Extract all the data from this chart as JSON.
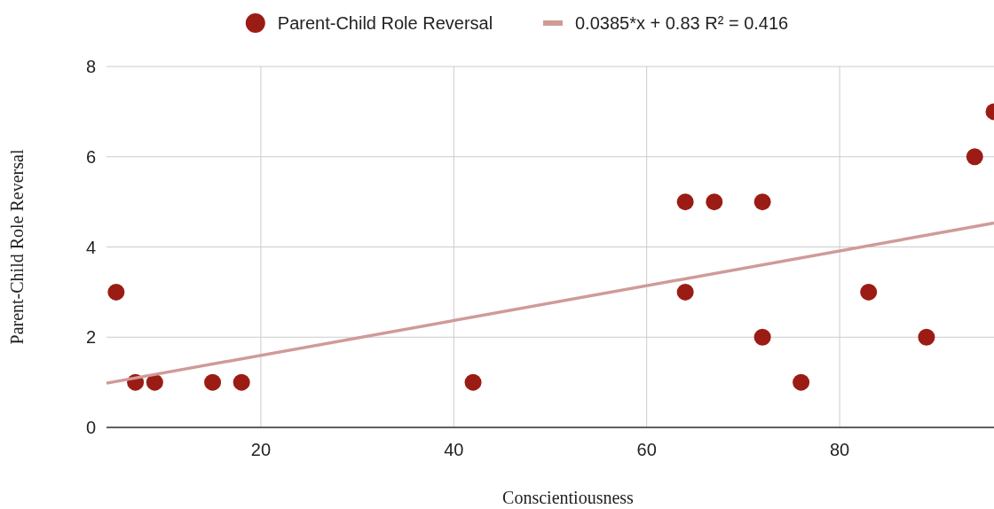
{
  "chart_data": {
    "type": "scatter",
    "xlabel": "Conscientiousness",
    "ylabel": "Parent-Child Role Reversal",
    "xlim": [
      4,
      96
    ],
    "ylim": [
      0,
      8
    ],
    "xticks": [
      20,
      40,
      60,
      80
    ],
    "yticks": [
      0,
      2,
      4,
      6,
      8
    ],
    "grid": true,
    "legend": "top",
    "series": [
      {
        "name": "Parent-Child Role Reversal",
        "color": "#9b1c14",
        "marker": "circle",
        "x": [
          5,
          7,
          9,
          15,
          18,
          42,
          64,
          64,
          67,
          72,
          72,
          76,
          83,
          89,
          94,
          96
        ],
        "values": [
          3,
          1,
          1,
          1,
          1,
          1,
          5,
          3,
          5,
          5,
          2,
          1,
          3,
          2,
          6,
          7
        ]
      },
      {
        "name": "0.0385*x + 0.83 R² = 0.416",
        "type": "line",
        "color": "#d09a98",
        "marker": "none",
        "line_style": "solid",
        "x": [
          4,
          96
        ],
        "values": [
          0.98,
          4.53
        ]
      }
    ]
  }
}
